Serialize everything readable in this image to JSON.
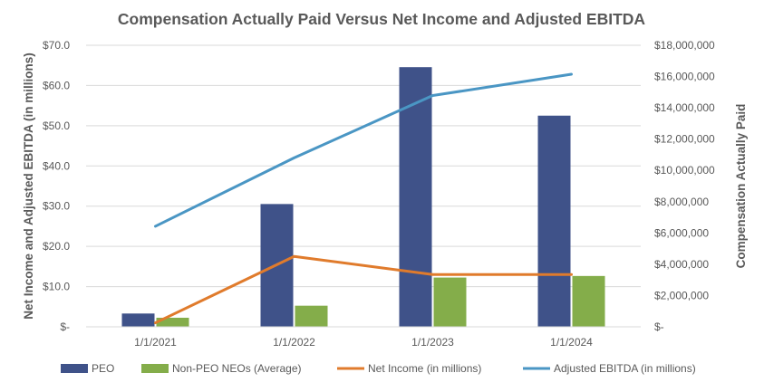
{
  "chart_data": {
    "type": "bar+line",
    "title": "Compensation Actually Paid Versus Net Income and Adjusted EBITDA",
    "categories": [
      "1/1/2021",
      "1/1/2022",
      "1/1/2023",
      "1/1/2024"
    ],
    "left_axis": {
      "label": "Net Income and Adjusted EBITDA (in millions)",
      "ylim": [
        0,
        70
      ],
      "ticks": [
        0,
        10,
        20,
        30,
        40,
        50,
        60,
        70
      ],
      "tick_labels": [
        "$-",
        "$10.0",
        "$20.0",
        "$30.0",
        "$40.0",
        "$50.0",
        "$60.0",
        "$70.0"
      ]
    },
    "right_axis": {
      "label": "Compensation Actually Paid",
      "ylim": [
        0,
        18000000
      ],
      "ticks": [
        0,
        2000000,
        4000000,
        6000000,
        8000000,
        10000000,
        12000000,
        14000000,
        16000000,
        18000000
      ],
      "tick_labels": [
        "$-",
        "$2,000,000",
        "$4,000,000",
        "$6,000,000",
        "$8,000,000",
        "$10,000,000",
        "$12,000,000",
        "$14,000,000",
        "$16,000,000",
        "$18,000,000"
      ]
    },
    "series": [
      {
        "name": "PEO",
        "type": "bar",
        "axis": "right",
        "color": "#3F5289",
        "values": [
          850000,
          7850000,
          16600000,
          13500000
        ]
      },
      {
        "name": "Non-PEO NEOs (Average)",
        "type": "bar",
        "axis": "right",
        "color": "#84AD4A",
        "values": [
          580000,
          1350000,
          3150000,
          3250000
        ]
      },
      {
        "name": "Net Income (in millions)",
        "type": "line",
        "axis": "left",
        "color": "#E07B2C",
        "values": [
          1.0,
          17.5,
          13.0,
          13.0
        ]
      },
      {
        "name": "Adjusted EBITDA (in millions)",
        "type": "line",
        "axis": "left",
        "color": "#4A96C4",
        "values": [
          25.0,
          42.0,
          57.5,
          62.8
        ]
      }
    ],
    "legend_position": "bottom",
    "grid": true
  }
}
